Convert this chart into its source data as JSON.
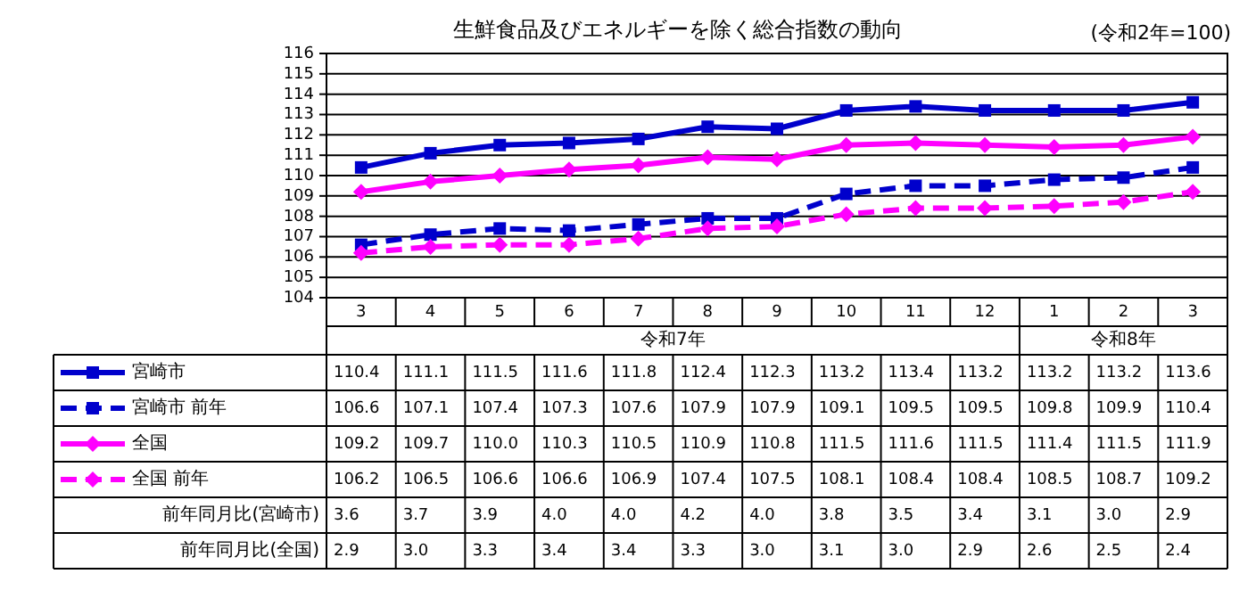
{
  "chart_data": {
    "type": "line",
    "title": "生鮮食品及びエネルギーを除く総合指数の動向",
    "annotations": [
      "(令和2年=100)",
      "令和7年",
      "令和8年",
      "前年同月比(宮崎市)",
      "3.6",
      "3.7",
      "3.9",
      "4.0",
      "4.0",
      "4.2",
      "4.0",
      "3.8",
      "3.5",
      "3.4",
      "3.1",
      "3.0",
      "2.9",
      "前年同月比(全国)",
      "2.9",
      "3.0",
      "3.3",
      "3.4",
      "3.4",
      "3.3",
      "3.0",
      "3.1",
      "3.0",
      "2.9",
      "2.6",
      "2.5",
      "2.4"
    ],
    "categories": [
      "3",
      "4",
      "5",
      "6",
      "7",
      "8",
      "9",
      "10",
      "11",
      "12",
      "1",
      "2",
      "3"
    ],
    "ylim": [
      104,
      116
    ],
    "yticks": [
      104,
      105,
      106,
      107,
      108,
      109,
      110,
      111,
      112,
      113,
      114,
      115,
      116
    ],
    "grid": "y",
    "legend": "bottom",
    "series": [
      {
        "name": "宮崎市",
        "color": "#0000cc",
        "marker": "square",
        "line_style": "solid",
        "values": [
          110.4,
          111.1,
          111.5,
          111.6,
          111.8,
          112.4,
          112.3,
          113.2,
          113.4,
          113.2,
          113.2,
          113.2,
          113.6
        ],
        "value_labels": [
          "110.4",
          "111.1",
          "111.5",
          "111.6",
          "111.8",
          "112.4",
          "112.3",
          "113.2",
          "113.4",
          "113.2",
          "113.2",
          "113.2",
          "113.6"
        ]
      },
      {
        "name": "宮崎市 前年",
        "color": "#0000cc",
        "marker": "square",
        "line_style": "dashed",
        "values": [
          106.6,
          107.1,
          107.4,
          107.3,
          107.6,
          107.9,
          107.9,
          109.1,
          109.5,
          109.5,
          109.8,
          109.9,
          110.4
        ],
        "value_labels": [
          "106.6",
          "107.1",
          "107.4",
          "107.3",
          "107.6",
          "107.9",
          "107.9",
          "109.1",
          "109.5",
          "109.5",
          "109.8",
          "109.9",
          "110.4"
        ]
      },
      {
        "name": "全国",
        "color": "#ff00ff",
        "marker": "diamond",
        "line_style": "solid",
        "values": [
          109.2,
          109.7,
          110.0,
          110.3,
          110.5,
          110.9,
          110.8,
          111.5,
          111.6,
          111.5,
          111.4,
          111.5,
          111.9
        ],
        "value_labels": [
          "109.2",
          "109.7",
          "110.0",
          "110.3",
          "110.5",
          "110.9",
          "110.8",
          "111.5",
          "111.6",
          "111.5",
          "111.4",
          "111.5",
          "111.9"
        ]
      },
      {
        "name": "全国 前年",
        "color": "#ff00ff",
        "marker": "diamond",
        "line_style": "dashed",
        "values": [
          106.2,
          106.5,
          106.6,
          106.6,
          106.9,
          107.4,
          107.5,
          108.1,
          108.4,
          108.4,
          108.5,
          108.7,
          109.2
        ],
        "value_labels": [
          "106.2",
          "106.5",
          "106.6",
          "106.6",
          "106.9",
          "107.4",
          "107.5",
          "108.1",
          "108.4",
          "108.4",
          "108.5",
          "108.7",
          "109.2"
        ]
      }
    ]
  }
}
